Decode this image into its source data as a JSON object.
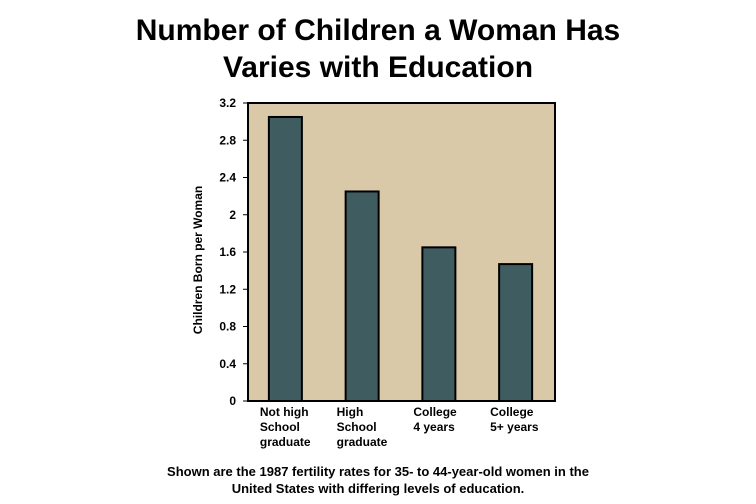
{
  "title_lines": [
    "Number of Children a Woman Has",
    "Varies with Education"
  ],
  "caption_lines": [
    "Shown are the 1987 fertility rates for 35- to 44-year-old women in the",
    "United States with differing levels of education."
  ],
  "colors": {
    "plot_background": "#d9c9a8",
    "bar_fill": "#3f5d61",
    "outline": "#000000"
  },
  "chart_data": {
    "type": "bar",
    "title": "Number of Children a Woman Has Varies with Education",
    "ylabel": "Children Born per Woman",
    "xlabel": "",
    "categories": [
      [
        "Not high",
        "School",
        "graduate"
      ],
      [
        "High",
        "School",
        "graduate"
      ],
      [
        "College",
        "4 years"
      ],
      [
        "College",
        "5+ years"
      ]
    ],
    "values": [
      3.05,
      2.25,
      1.65,
      1.47
    ],
    "ylim": [
      0,
      3.2
    ],
    "yticks": [
      "0",
      "0.4",
      "0.8",
      "1.2",
      "1.6",
      "2",
      "2.4",
      "2.8",
      "3.2"
    ],
    "grid": false,
    "legend": "none"
  }
}
